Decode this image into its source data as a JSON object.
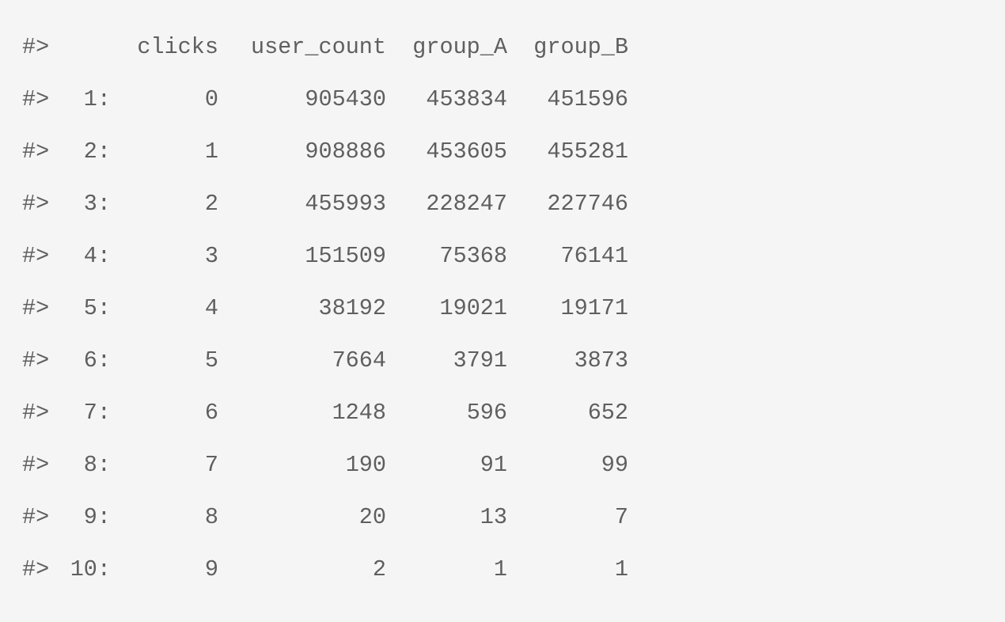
{
  "prompt": "#>",
  "columns": [
    "clicks",
    "user_count",
    "group_A",
    "group_B"
  ],
  "rows": [
    {
      "index": "1:",
      "clicks": "0",
      "user_count": "905430",
      "group_A": "453834",
      "group_B": "451596"
    },
    {
      "index": "2:",
      "clicks": "1",
      "user_count": "908886",
      "group_A": "453605",
      "group_B": "455281"
    },
    {
      "index": "3:",
      "clicks": "2",
      "user_count": "455993",
      "group_A": "228247",
      "group_B": "227746"
    },
    {
      "index": "4:",
      "clicks": "3",
      "user_count": "151509",
      "group_A": "75368",
      "group_B": "76141"
    },
    {
      "index": "5:",
      "clicks": "4",
      "user_count": "38192",
      "group_A": "19021",
      "group_B": "19171"
    },
    {
      "index": "6:",
      "clicks": "5",
      "user_count": "7664",
      "group_A": "3791",
      "group_B": "3873"
    },
    {
      "index": "7:",
      "clicks": "6",
      "user_count": "1248",
      "group_A": "596",
      "group_B": "652"
    },
    {
      "index": "8:",
      "clicks": "7",
      "user_count": "190",
      "group_A": "91",
      "group_B": "99"
    },
    {
      "index": "9:",
      "clicks": "8",
      "user_count": "20",
      "group_A": "13",
      "group_B": "7"
    },
    {
      "index": "10:",
      "clicks": "9",
      "user_count": "2",
      "group_A": "1",
      "group_B": "1"
    }
  ]
}
